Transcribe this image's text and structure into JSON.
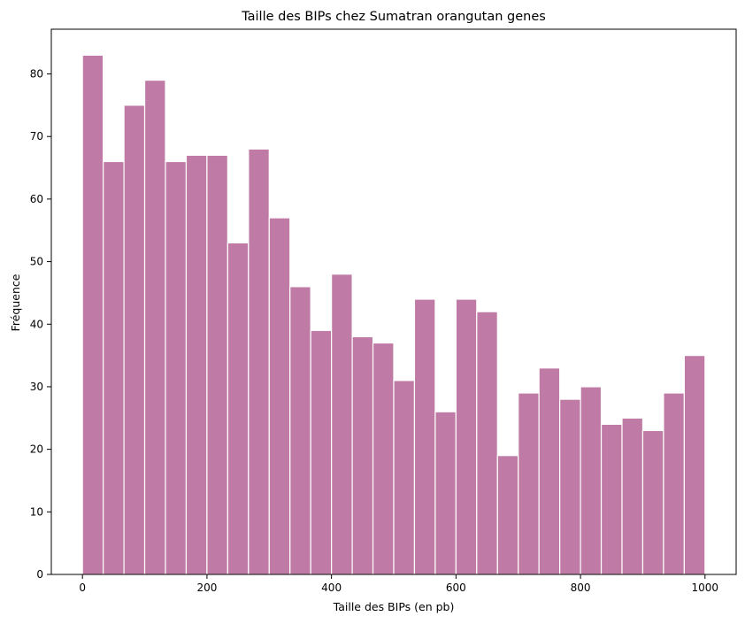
{
  "chart_data": {
    "type": "bar",
    "title": "Taille des BIPs chez Sumatran orangutan genes",
    "xlabel": "Taille des BIPs (en pb)",
    "ylabel": "Fréquence",
    "bin_start": 0,
    "bin_width": 33.3333,
    "values": [
      83,
      66,
      75,
      79,
      66,
      67,
      67,
      53,
      68,
      57,
      46,
      39,
      48,
      38,
      37,
      31,
      44,
      26,
      44,
      42,
      19,
      29,
      33,
      28,
      30,
      24,
      25,
      23,
      29,
      35
    ],
    "xlim": [
      -50,
      1050
    ],
    "ylim": [
      0,
      87.15
    ],
    "xticks": [
      0,
      200,
      400,
      600,
      800,
      1000
    ],
    "yticks": [
      0,
      10,
      20,
      30,
      40,
      50,
      60,
      70,
      80
    ],
    "grid": false,
    "legend": "none",
    "colors": {
      "bar": "#bf7ba5",
      "edge": "#ffffff"
    }
  }
}
